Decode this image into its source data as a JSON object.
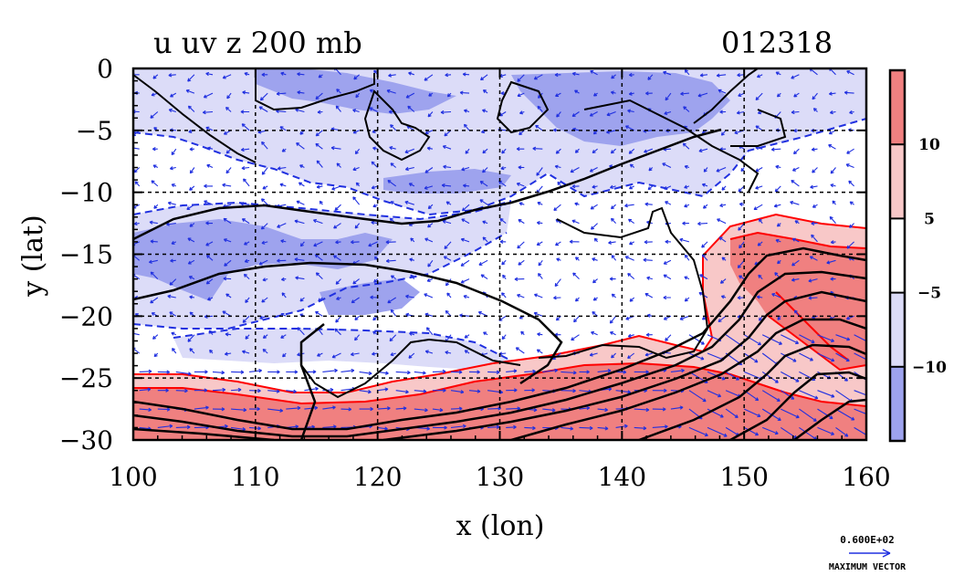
{
  "title": "u uv z 200 mb",
  "date": "012318",
  "xlabel": "x (lon)",
  "ylabel": "y (lat)",
  "x_ticks": [
    "100",
    "110",
    "120",
    "130",
    "140",
    "150",
    "160"
  ],
  "y_ticks": [
    "0",
    "−5",
    "−10",
    "−15",
    "−20",
    "−25",
    "−30"
  ],
  "colorbar": {
    "labels": [
      "10",
      "5",
      "−5",
      "−10"
    ],
    "colors": [
      "#f08080",
      "#f8c8c8",
      "#ffffff",
      "#dcdcf8",
      "#9ea3ee"
    ]
  },
  "reference_vector": {
    "value": "0.600E+02",
    "label": "MAXIMUM VECTOR"
  },
  "colors": {
    "positive_strong": "#f08080",
    "positive_weak": "#f8c8c8",
    "negative_weak": "#dcdcf8",
    "negative_strong": "#9ea3ee",
    "vector": "#2030e0",
    "contour": "#000000",
    "positive_contour": "#ff0000"
  },
  "chart_data": {
    "type": "heatmap",
    "variable": "u",
    "level_mb": 200,
    "xlim": [
      100,
      160
    ],
    "ylim": [
      -30,
      0
    ],
    "shading_levels": [
      -10,
      -5,
      5,
      10
    ],
    "grid": true,
    "vector_field": "uv",
    "contour_field": "z"
  }
}
